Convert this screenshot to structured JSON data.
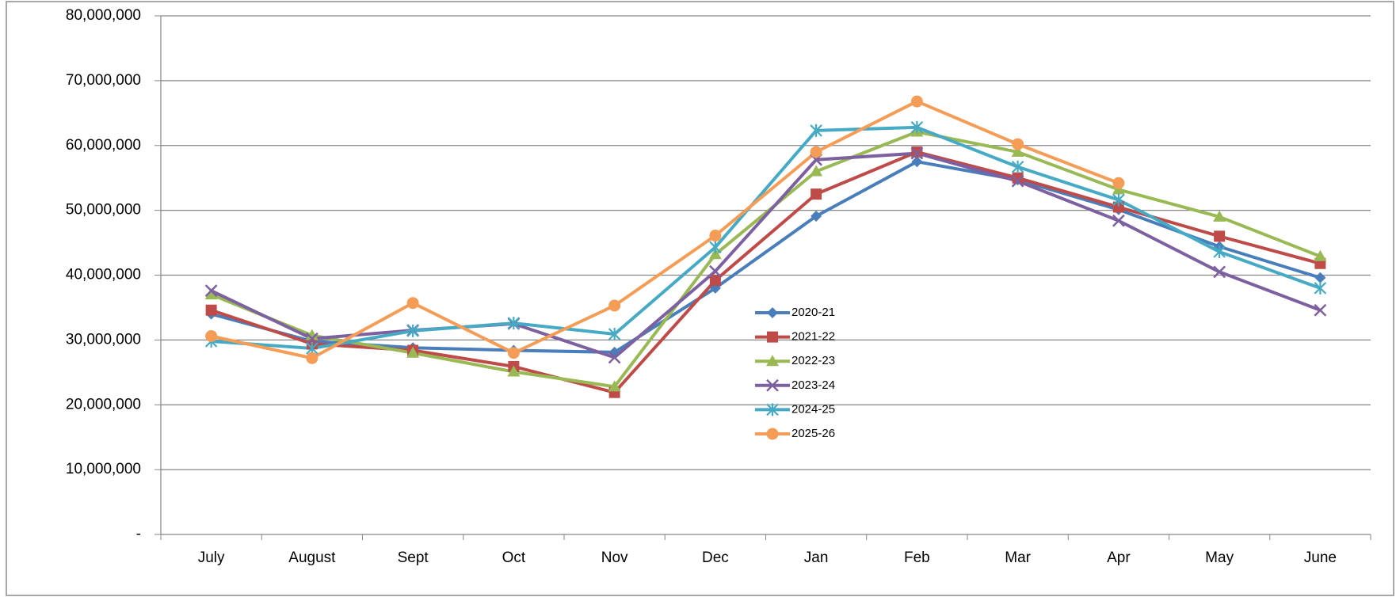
{
  "chart_data": {
    "type": "line",
    "categories": [
      "July",
      "August",
      "Sept",
      "Oct",
      "Nov",
      "Dec",
      "Jan",
      "Feb",
      "Mar",
      "Apr",
      "May",
      "June"
    ],
    "series": [
      {
        "name": "2020-21",
        "color": "#4a7ebb",
        "marker": "diamond",
        "values": [
          34000000,
          29800000,
          28800000,
          28400000,
          28100000,
          38000000,
          49100000,
          57500000,
          54700000,
          50100000,
          44400000,
          39600000
        ]
      },
      {
        "name": "2021-22",
        "color": "#be4b48",
        "marker": "square",
        "values": [
          34600000,
          29400000,
          28400000,
          25900000,
          21900000,
          39200000,
          52500000,
          59000000,
          55000000,
          50500000,
          46000000,
          41800000
        ]
      },
      {
        "name": "2022-23",
        "color": "#98b954",
        "marker": "triangle",
        "values": [
          37000000,
          30700000,
          28000000,
          25100000,
          22800000,
          43200000,
          56000000,
          62100000,
          59000000,
          53200000,
          49000000,
          42900000
        ]
      },
      {
        "name": "2023-24",
        "color": "#7d60a0",
        "marker": "x",
        "values": [
          37600000,
          30200000,
          31500000,
          32500000,
          27300000,
          40600000,
          57800000,
          58800000,
          54500000,
          48400000,
          40500000,
          34600000
        ]
      },
      {
        "name": "2024-25",
        "color": "#46aac5",
        "marker": "asterisk",
        "values": [
          29800000,
          28700000,
          31400000,
          32600000,
          30900000,
          44300000,
          62300000,
          62800000,
          56700000,
          51600000,
          43600000,
          38000000
        ]
      },
      {
        "name": "2025-26",
        "color": "#f59d56",
        "marker": "circle",
        "values": [
          30600000,
          27200000,
          35700000,
          28000000,
          35300000,
          46100000,
          59000000,
          66800000,
          60200000,
          54200000,
          null,
          null
        ]
      }
    ],
    "ylim": [
      0,
      80000000
    ],
    "yticks": [
      {
        "value": 0,
        "label": "-"
      },
      {
        "value": 10000000,
        "label": "10,000,000"
      },
      {
        "value": 20000000,
        "label": "20,000,000"
      },
      {
        "value": 30000000,
        "label": "30,000,000"
      },
      {
        "value": 40000000,
        "label": "40,000,000"
      },
      {
        "value": 50000000,
        "label": "50,000,000"
      },
      {
        "value": 60000000,
        "label": "60,000,000"
      },
      {
        "value": 70000000,
        "label": "70,000,000"
      },
      {
        "value": 80000000,
        "label": "80,000,000"
      }
    ],
    "grid": true
  }
}
